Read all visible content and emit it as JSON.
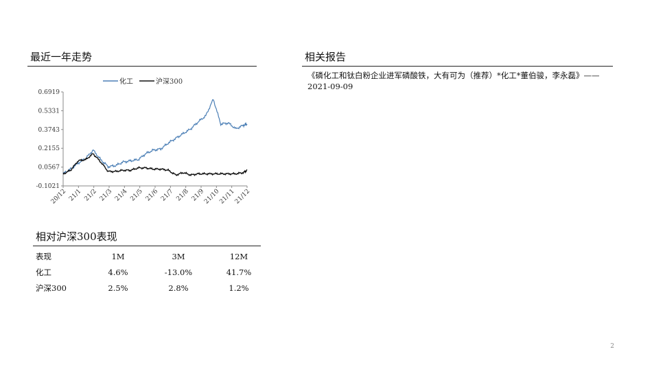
{
  "trend_section": {
    "title": "最近一年走势"
  },
  "reports_section": {
    "title": "相关报告",
    "items": [
      "《磷化工和钛白粉企业进军磷酸铁，大有可为（推荐）*化工*董伯骏，李永磊》——2021-09-09"
    ]
  },
  "performance_section": {
    "title": "相对沪深300表现",
    "header": [
      "表现",
      "1M",
      "3M",
      "12M"
    ],
    "rows": [
      [
        "化工",
        "4.6%",
        "-13.0%",
        "41.7%"
      ],
      [
        "沪深300",
        "2.5%",
        "2.8%",
        "1.2%"
      ]
    ]
  },
  "page_number": "2",
  "chart_data": {
    "type": "line",
    "title": "",
    "xlabel": "",
    "ylabel": "",
    "legend_position": "top",
    "grid": false,
    "yticks": [
      "0.6919",
      "0.5331",
      "0.3743",
      "0.2155",
      "0.0567",
      "-0.1021"
    ],
    "ylim": [
      -0.1021,
      0.6919
    ],
    "xticks": [
      "20/12",
      "21/1",
      "21/2",
      "21/3",
      "21/4",
      "21/5",
      "21/6",
      "21/7",
      "21/8",
      "21/9",
      "21/10",
      "21/11",
      "21/12"
    ],
    "x": [
      0,
      0.5,
      1,
      1.5,
      2,
      2.5,
      3,
      3.5,
      4,
      4.5,
      5,
      5.5,
      6,
      6.5,
      7,
      7.5,
      8,
      8.5,
      9,
      9.5,
      10,
      10.5,
      11,
      11.5,
      12,
      12.25
    ],
    "series": [
      {
        "name": "化工",
        "color": "#4a7eb5",
        "values": [
          0.0,
          0.04,
          0.09,
          0.13,
          0.2,
          0.12,
          0.06,
          0.07,
          0.1,
          0.11,
          0.12,
          0.17,
          0.2,
          0.21,
          0.26,
          0.3,
          0.34,
          0.38,
          0.44,
          0.49,
          0.63,
          0.42,
          0.43,
          0.38,
          0.41,
          0.42
        ]
      },
      {
        "name": "沪深300",
        "color": "#111111",
        "values": [
          0.0,
          0.03,
          0.11,
          0.12,
          0.17,
          0.1,
          0.02,
          0.02,
          0.03,
          0.03,
          0.05,
          0.05,
          0.04,
          0.04,
          0.03,
          -0.01,
          0.01,
          -0.01,
          0.0,
          0.0,
          0.0,
          0.0,
          0.0,
          0.0,
          0.01,
          0.03
        ]
      }
    ]
  }
}
